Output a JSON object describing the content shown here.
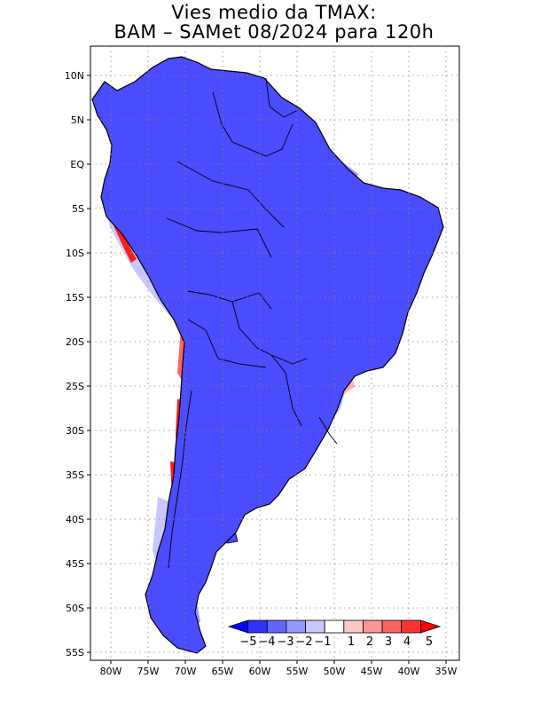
{
  "title": {
    "line1": "Vies medio da TMAX:",
    "line2": "BAM – SAMet 08/2024  para 120h"
  },
  "axes": {
    "lat_labels": [
      "10N",
      "5N",
      "EQ",
      "5S",
      "10S",
      "15S",
      "20S",
      "25S",
      "30S",
      "35S",
      "40S",
      "45S",
      "50S",
      "55S"
    ],
    "lon_labels": [
      "80W",
      "75W",
      "70W",
      "65W",
      "60W",
      "55W",
      "50W",
      "45W",
      "40W",
      "35W"
    ]
  },
  "colorbar": {
    "labels": [
      "−5",
      "−4",
      "−3",
      "−2",
      "−1",
      "1",
      "2",
      "3",
      "4",
      "5"
    ],
    "colors": [
      "#0000ff",
      "#3232ff",
      "#6464ff",
      "#9696ff",
      "#c8c8ff",
      "#ffffff",
      "#ffc8c8",
      "#ff9696",
      "#ff6464",
      "#ff3232",
      "#ff0000"
    ]
  },
  "map_colors": {
    "strong_neg": "#1a1aff",
    "neg": "#4b4bff",
    "mid_neg": "#7d7dff",
    "light_neg": "#b4b4ff",
    "pale": "#d8d8ff",
    "pos_strong": "#ff1a1a",
    "pos_light": "#ffb0b0"
  }
}
